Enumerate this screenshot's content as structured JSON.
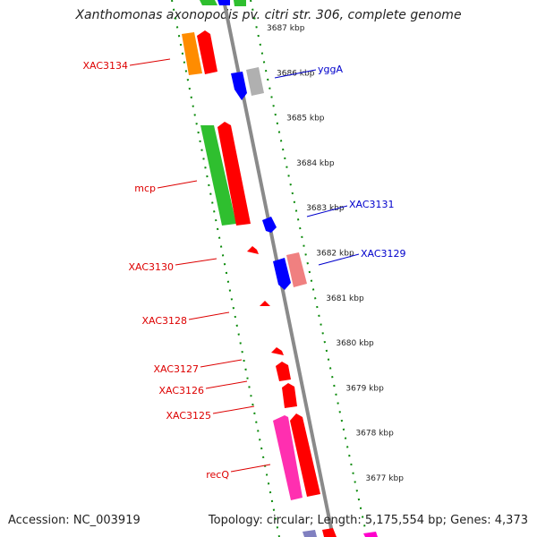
{
  "title": "Xanthomonas axonopodis pv. citri str. 306, complete genome",
  "footer": {
    "accession": "Accession: NC_003919",
    "info": "Topology: circular; Length: 5,175,554 bp; Genes: 4,373"
  },
  "colors": {
    "red": "#ff0000",
    "blue": "#0000ff",
    "green": "#2fbf2f",
    "orange": "#ff8c00",
    "pink": "#ff2fb0",
    "salmon": "#f08080",
    "grey": "#b0b0b0",
    "ticks": "#0a8a0a",
    "label_red": "#dd0000",
    "label_blue": "#0000cc"
  },
  "scale": {
    "unit": "kbp",
    "ticks": [
      {
        "label": "3687 kbp",
        "kbp": 3687
      },
      {
        "label": "3686 kbp",
        "kbp": 3686
      },
      {
        "label": "3685 kbp",
        "kbp": 3685
      },
      {
        "label": "3684 kbp",
        "kbp": 3684
      },
      {
        "label": "3683 kbp",
        "kbp": 3683
      },
      {
        "label": "3682 kbp",
        "kbp": 3682
      },
      {
        "label": "3681 kbp",
        "kbp": 3681
      },
      {
        "label": "3680 kbp",
        "kbp": 3680
      },
      {
        "label": "3679 kbp",
        "kbp": 3679
      },
      {
        "label": "3678 kbp",
        "kbp": 3678
      },
      {
        "label": "3677 kbp",
        "kbp": 3677
      }
    ]
  },
  "genes": [
    {
      "name": "XAC3134",
      "kbp": 3686.4,
      "color_key": "red"
    },
    {
      "name": "mcp",
      "kbp": 3683.5,
      "color_key": "red"
    },
    {
      "name": "XAC3130",
      "kbp": 3682.0,
      "color_key": "red"
    },
    {
      "name": "XAC3128",
      "kbp": 3680.8,
      "color_key": "red"
    },
    {
      "name": "XAC3127",
      "kbp": 3679.8,
      "color_key": "red"
    },
    {
      "name": "XAC3126",
      "kbp": 3679.3,
      "color_key": "red"
    },
    {
      "name": "XAC3125",
      "kbp": 3678.7,
      "color_key": "red"
    },
    {
      "name": "recQ",
      "kbp": 3677.5,
      "color_key": "red"
    },
    {
      "name": "yggA",
      "kbp": 3685.8,
      "color_key": "blue"
    },
    {
      "name": "XAC3131",
      "kbp": 3682.9,
      "color_key": "blue"
    },
    {
      "name": "XAC3129",
      "kbp": 3681.9,
      "color_key": "blue"
    }
  ]
}
